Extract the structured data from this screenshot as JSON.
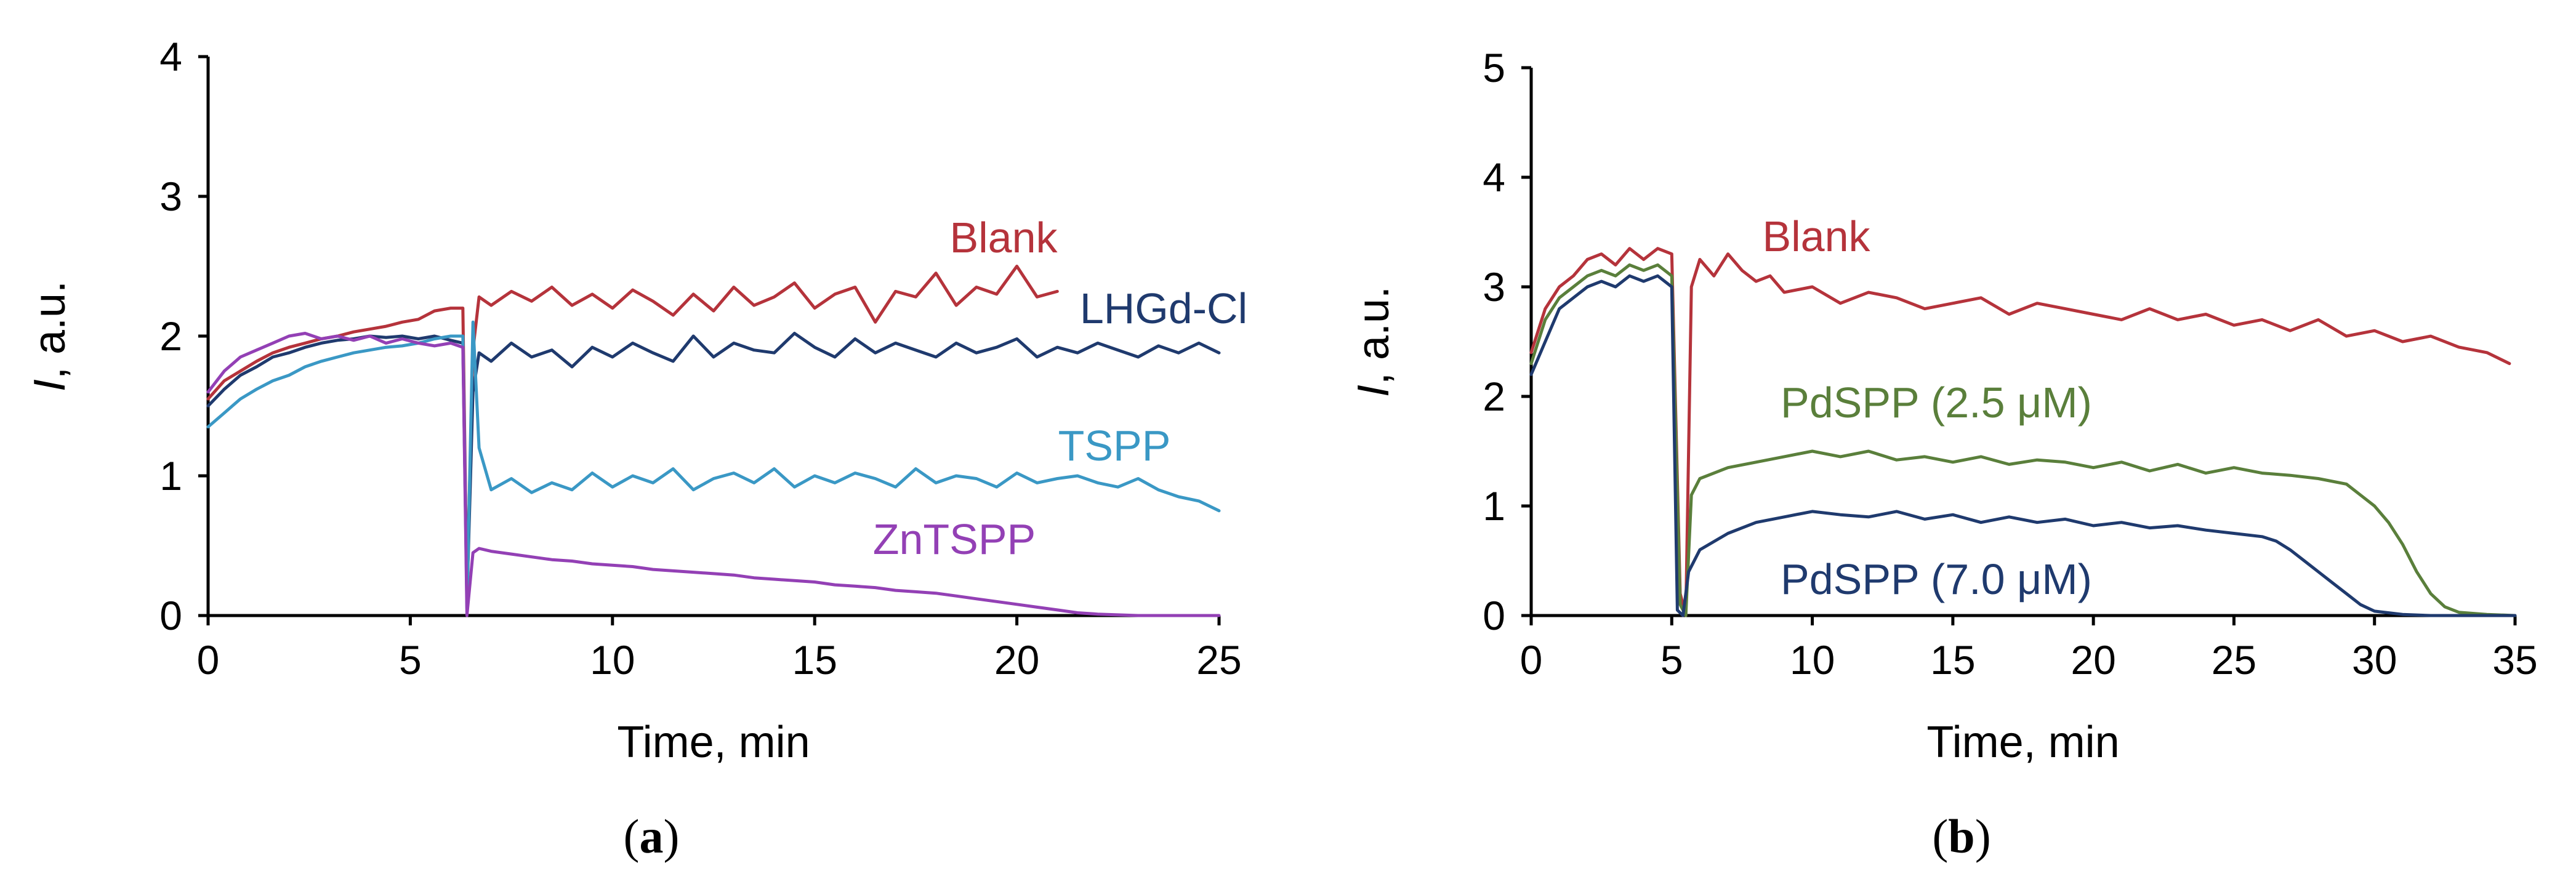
{
  "chart_data": [
    {
      "id": "a",
      "type": "line",
      "panel_label_open": "(",
      "panel_label_letter": "a",
      "panel_label_close": ")",
      "xlabel": "Time, min",
      "ylabel_italic": "I",
      "ylabel_rest": ", a.u.",
      "xlim": [
        0,
        25
      ],
      "ylim": [
        0,
        4
      ],
      "xticks": [
        0,
        5,
        10,
        15,
        20,
        25
      ],
      "yticks": [
        0,
        1,
        2,
        3,
        4
      ],
      "grid": false,
      "series": [
        {
          "name": "Blank",
          "color": "#b5333b",
          "x": [
            0,
            0.4,
            0.8,
            1.2,
            1.6,
            2.0,
            2.4,
            2.8,
            3.2,
            3.6,
            4.0,
            4.4,
            4.8,
            5.2,
            5.6,
            6.0,
            6.3,
            6.4,
            6.55,
            6.7,
            7.0,
            7.5,
            8.0,
            8.5,
            9.0,
            9.5,
            10.0,
            10.5,
            11.0,
            11.5,
            12.0,
            12.5,
            13.0,
            13.5,
            14.0,
            14.5,
            15.0,
            15.5,
            16.0,
            16.5,
            17.0,
            17.5,
            18.0,
            18.5,
            19.0,
            19.5,
            20.0,
            20.5,
            21.0
          ],
          "y": [
            1.55,
            1.68,
            1.75,
            1.82,
            1.88,
            1.92,
            1.95,
            1.98,
            2.0,
            2.03,
            2.05,
            2.07,
            2.1,
            2.12,
            2.18,
            2.2,
            2.2,
            0.15,
            1.9,
            2.28,
            2.22,
            2.32,
            2.25,
            2.35,
            2.22,
            2.3,
            2.2,
            2.33,
            2.25,
            2.15,
            2.3,
            2.18,
            2.35,
            2.22,
            2.28,
            2.38,
            2.2,
            2.3,
            2.35,
            2.1,
            2.32,
            2.28,
            2.45,
            2.22,
            2.35,
            2.3,
            2.5,
            2.28,
            2.32
          ]
        },
        {
          "name": "LHGd-Cl",
          "color": "#1f3a6e",
          "x": [
            0,
            0.4,
            0.8,
            1.2,
            1.6,
            2.0,
            2.4,
            2.8,
            3.2,
            3.6,
            4.0,
            4.4,
            4.8,
            5.2,
            5.6,
            6.0,
            6.3,
            6.4,
            6.55,
            6.7,
            7.0,
            7.5,
            8.0,
            8.5,
            9.0,
            9.5,
            10.0,
            10.5,
            11.0,
            11.5,
            12.0,
            12.5,
            13.0,
            13.5,
            14.0,
            14.5,
            15.0,
            15.5,
            16.0,
            16.5,
            17.0,
            17.5,
            18.0,
            18.5,
            19.0,
            19.5,
            20.0,
            20.5,
            21.0,
            21.5,
            22.0,
            22.5,
            23.0,
            23.5,
            24.0,
            24.5,
            25.0
          ],
          "y": [
            1.5,
            1.62,
            1.72,
            1.78,
            1.85,
            1.88,
            1.92,
            1.95,
            1.97,
            1.98,
            2.0,
            1.99,
            2.0,
            1.98,
            2.0,
            1.97,
            1.95,
            0.1,
            1.6,
            1.88,
            1.82,
            1.95,
            1.85,
            1.9,
            1.78,
            1.92,
            1.85,
            1.95,
            1.88,
            1.82,
            2.0,
            1.85,
            1.95,
            1.9,
            1.88,
            2.02,
            1.92,
            1.85,
            1.98,
            1.88,
            1.95,
            1.9,
            1.85,
            1.95,
            1.88,
            1.92,
            1.98,
            1.85,
            1.92,
            1.88,
            1.95,
            1.9,
            1.85,
            1.93,
            1.88,
            1.95,
            1.88
          ]
        },
        {
          "name": "TSPP",
          "color": "#3a98c5",
          "x": [
            0,
            0.4,
            0.8,
            1.2,
            1.6,
            2.0,
            2.4,
            2.8,
            3.2,
            3.6,
            4.0,
            4.4,
            4.8,
            5.2,
            5.6,
            6.0,
            6.3,
            6.4,
            6.55,
            6.7,
            7.0,
            7.5,
            8.0,
            8.5,
            9.0,
            9.5,
            10.0,
            10.5,
            11.0,
            11.5,
            12.0,
            12.5,
            13.0,
            13.5,
            14.0,
            14.5,
            15.0,
            15.5,
            16.0,
            16.5,
            17.0,
            17.5,
            18.0,
            18.5,
            19.0,
            19.5,
            20.0,
            20.5,
            21.0,
            21.5,
            22.0,
            22.5,
            23.0,
            23.5,
            24.0,
            24.5,
            25.0
          ],
          "y": [
            1.35,
            1.45,
            1.55,
            1.62,
            1.68,
            1.72,
            1.78,
            1.82,
            1.85,
            1.88,
            1.9,
            1.92,
            1.93,
            1.95,
            1.98,
            2.0,
            2.0,
            0.05,
            2.1,
            1.2,
            0.9,
            0.98,
            0.88,
            0.95,
            0.9,
            1.02,
            0.92,
            1.0,
            0.95,
            1.05,
            0.9,
            0.98,
            1.02,
            0.95,
            1.05,
            0.92,
            1.0,
            0.95,
            1.02,
            0.98,
            0.92,
            1.05,
            0.95,
            1.0,
            0.98,
            0.92,
            1.02,
            0.95,
            0.98,
            1.0,
            0.95,
            0.92,
            0.98,
            0.9,
            0.85,
            0.82,
            0.75
          ]
        },
        {
          "name": "ZnTSPP",
          "color": "#9340b5",
          "x": [
            0,
            0.4,
            0.8,
            1.2,
            1.6,
            2.0,
            2.4,
            2.8,
            3.2,
            3.6,
            4.0,
            4.4,
            4.8,
            5.2,
            5.6,
            6.0,
            6.3,
            6.4,
            6.55,
            6.7,
            7.0,
            7.5,
            8.0,
            8.5,
            9.0,
            9.5,
            10.0,
            10.5,
            11.0,
            11.5,
            12.0,
            12.5,
            13.0,
            13.5,
            14.0,
            14.5,
            15.0,
            15.5,
            16.0,
            16.5,
            17.0,
            17.5,
            18.0,
            18.5,
            19.0,
            19.5,
            20.0,
            20.5,
            21.0,
            21.5,
            22.0,
            23.0,
            24.0,
            25.0
          ],
          "y": [
            1.6,
            1.75,
            1.85,
            1.9,
            1.95,
            2.0,
            2.02,
            1.98,
            2.0,
            1.97,
            2.0,
            1.95,
            1.98,
            1.95,
            1.93,
            1.95,
            1.92,
            0.0,
            0.45,
            0.48,
            0.46,
            0.44,
            0.42,
            0.4,
            0.39,
            0.37,
            0.36,
            0.35,
            0.33,
            0.32,
            0.31,
            0.3,
            0.29,
            0.27,
            0.26,
            0.25,
            0.24,
            0.22,
            0.21,
            0.2,
            0.18,
            0.17,
            0.16,
            0.14,
            0.12,
            0.1,
            0.08,
            0.06,
            0.04,
            0.02,
            0.01,
            0.0,
            0.0,
            0.0
          ]
        }
      ]
    },
    {
      "id": "b",
      "type": "line",
      "panel_label_open": "(",
      "panel_label_letter": "b",
      "panel_label_close": ")",
      "xlabel": "Time, min",
      "ylabel_italic": "I",
      "ylabel_rest": ", a.u.",
      "xlim": [
        0,
        35
      ],
      "ylim": [
        0,
        5
      ],
      "xticks": [
        0,
        5,
        10,
        15,
        20,
        25,
        30,
        35
      ],
      "yticks": [
        0,
        1,
        2,
        3,
        4,
        5
      ],
      "grid": false,
      "series": [
        {
          "name": "Blank",
          "color": "#b5333b",
          "x": [
            0,
            0.5,
            1.0,
            1.5,
            2.0,
            2.5,
            3.0,
            3.5,
            4.0,
            4.5,
            5.0,
            5.3,
            5.5,
            5.7,
            6.0,
            6.5,
            7.0,
            7.5,
            8.0,
            8.5,
            9.0,
            10.0,
            11.0,
            12.0,
            13.0,
            14.0,
            15.0,
            16.0,
            17.0,
            18.0,
            19.0,
            20.0,
            21.0,
            22.0,
            23.0,
            24.0,
            25.0,
            26.0,
            27.0,
            28.0,
            29.0,
            30.0,
            31.0,
            32.0,
            33.0,
            34.0,
            34.8
          ],
          "y": [
            2.4,
            2.8,
            3.0,
            3.1,
            3.25,
            3.3,
            3.2,
            3.35,
            3.25,
            3.35,
            3.3,
            0.2,
            0.0,
            3.0,
            3.25,
            3.1,
            3.3,
            3.15,
            3.05,
            3.1,
            2.95,
            3.0,
            2.85,
            2.95,
            2.9,
            2.8,
            2.85,
            2.9,
            2.75,
            2.85,
            2.8,
            2.75,
            2.7,
            2.8,
            2.7,
            2.75,
            2.65,
            2.7,
            2.6,
            2.7,
            2.55,
            2.6,
            2.5,
            2.55,
            2.45,
            2.4,
            2.3
          ]
        },
        {
          "name": "PdSPP (2.5 μM)",
          "color": "#5a7f3b",
          "x": [
            0,
            0.5,
            1.0,
            1.5,
            2.0,
            2.5,
            3.0,
            3.5,
            4.0,
            4.5,
            5.0,
            5.3,
            5.5,
            5.7,
            6.0,
            7.0,
            8.0,
            9.0,
            10.0,
            11.0,
            12.0,
            13.0,
            14.0,
            15.0,
            16.0,
            17.0,
            18.0,
            19.0,
            20.0,
            21.0,
            22.0,
            23.0,
            24.0,
            25.0,
            26.0,
            27.0,
            28.0,
            29.0,
            29.5,
            30.0,
            30.5,
            31.0,
            31.5,
            32.0,
            32.5,
            33.0,
            34.0,
            35.0
          ],
          "y": [
            2.3,
            2.7,
            2.9,
            3.0,
            3.1,
            3.15,
            3.1,
            3.2,
            3.15,
            3.2,
            3.1,
            0.1,
            0.0,
            1.1,
            1.25,
            1.35,
            1.4,
            1.45,
            1.5,
            1.45,
            1.5,
            1.42,
            1.45,
            1.4,
            1.45,
            1.38,
            1.42,
            1.4,
            1.35,
            1.4,
            1.32,
            1.38,
            1.3,
            1.35,
            1.3,
            1.28,
            1.25,
            1.2,
            1.1,
            1.0,
            0.85,
            0.65,
            0.4,
            0.2,
            0.08,
            0.03,
            0.01,
            0.0
          ]
        },
        {
          "name": "PdSPP (7.0 μM)",
          "color": "#1f3a6e",
          "x": [
            0,
            0.5,
            1.0,
            1.5,
            2.0,
            2.5,
            3.0,
            3.5,
            4.0,
            4.5,
            5.0,
            5.2,
            5.4,
            5.6,
            6.0,
            7.0,
            8.0,
            9.0,
            10.0,
            11.0,
            12.0,
            13.0,
            14.0,
            15.0,
            16.0,
            17.0,
            18.0,
            19.0,
            20.0,
            21.0,
            22.0,
            23.0,
            24.0,
            25.0,
            26.0,
            26.5,
            27.0,
            27.5,
            28.0,
            28.5,
            29.0,
            29.5,
            30.0,
            31.0,
            32.0,
            33.0,
            34.0,
            35.0
          ],
          "y": [
            2.2,
            2.5,
            2.8,
            2.9,
            3.0,
            3.05,
            3.0,
            3.1,
            3.05,
            3.1,
            3.0,
            0.05,
            0.0,
            0.4,
            0.6,
            0.75,
            0.85,
            0.9,
            0.95,
            0.92,
            0.9,
            0.95,
            0.88,
            0.92,
            0.85,
            0.9,
            0.85,
            0.88,
            0.82,
            0.85,
            0.8,
            0.82,
            0.78,
            0.75,
            0.72,
            0.68,
            0.6,
            0.5,
            0.4,
            0.3,
            0.2,
            0.1,
            0.04,
            0.01,
            0.0,
            0.0,
            0.0,
            0.0
          ]
        }
      ]
    }
  ],
  "series_label_colors": [
    "#b5333b",
    "#1f3a6e",
    "#3a98c5",
    "#9340b5"
  ]
}
